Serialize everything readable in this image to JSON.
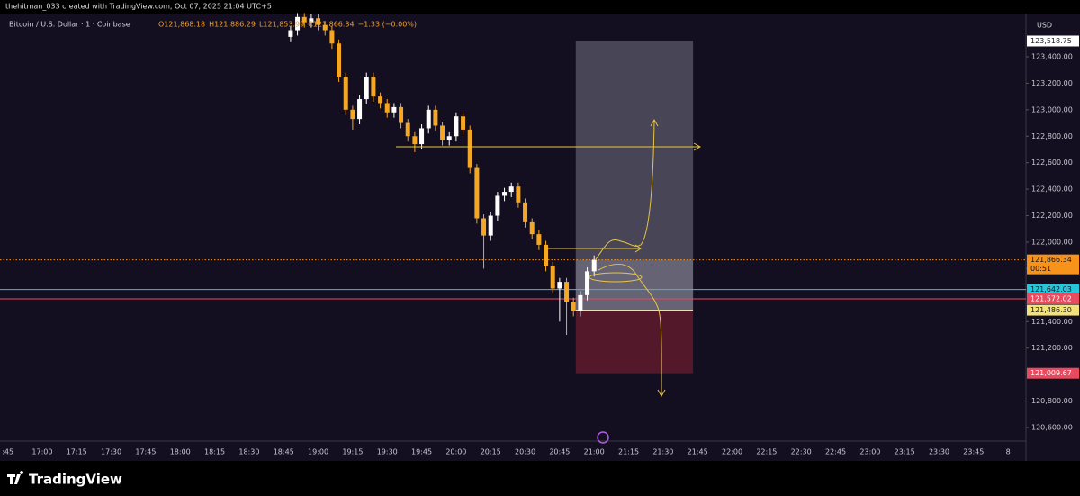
{
  "header": {
    "credit": "thehitman_033 created with TradingView.com, Oct 07, 2025 21:04 UTC+5",
    "symbol": "Bitcoin / U.S. Dollar · 1 · Coinbase",
    "ohlc": [
      "O121,868.18",
      "H121,886.29",
      "L121,853.99",
      "C121,866.34",
      "−1.33 (−0.00%)"
    ],
    "currency": "USD",
    "brand": "TradingView"
  },
  "chart_data": {
    "type": "candlestick",
    "up_color": "#ffffff",
    "down_color": "#f5a623",
    "x": [
      "18:48",
      "18:51",
      "18:54",
      "18:57",
      "19:00",
      "19:03",
      "19:06",
      "19:09",
      "19:12",
      "19:15",
      "19:18",
      "19:21",
      "19:24",
      "19:27",
      "19:30",
      "19:33",
      "19:36",
      "19:39",
      "19:42",
      "19:45",
      "19:48",
      "19:51",
      "19:54",
      "19:57",
      "20:00",
      "20:03",
      "20:06",
      "20:09",
      "20:12",
      "20:15",
      "20:18",
      "20:21",
      "20:24",
      "20:27",
      "20:30",
      "20:33",
      "20:36",
      "20:39",
      "20:42",
      "20:45",
      "20:48",
      "20:51",
      "20:54",
      "20:57",
      "21:00"
    ],
    "open": [
      123550,
      123600,
      123700,
      123660,
      123690,
      123640,
      123600,
      123500,
      123250,
      123000,
      122930,
      123080,
      123250,
      123100,
      123050,
      122980,
      123020,
      122900,
      122800,
      122740,
      122860,
      123000,
      122880,
      122770,
      122800,
      122950,
      122850,
      122560,
      122180,
      122050,
      122200,
      122350,
      122380,
      122420,
      122300,
      122150,
      122060,
      121980,
      121820,
      121650,
      121700,
      121550,
      121480,
      121600,
      121780
    ],
    "high": [
      123630,
      123730,
      123730,
      123720,
      123720,
      123670,
      123630,
      123530,
      123280,
      123030,
      123110,
      123280,
      123280,
      123130,
      123080,
      123050,
      123050,
      122930,
      122830,
      122890,
      123030,
      123030,
      122910,
      122830,
      122980,
      122980,
      122880,
      122590,
      122210,
      122230,
      122380,
      122410,
      122450,
      122450,
      122330,
      122180,
      122090,
      122010,
      121850,
      121730,
      121730,
      121580,
      121630,
      121810,
      121900
    ],
    "low": [
      123510,
      123560,
      123620,
      123620,
      123600,
      123560,
      123460,
      123210,
      122960,
      122850,
      122890,
      123040,
      123060,
      123010,
      122940,
      122940,
      122860,
      122760,
      122680,
      122700,
      122820,
      122840,
      122730,
      122730,
      122760,
      122810,
      122520,
      122140,
      121800,
      122010,
      122160,
      122310,
      122340,
      122260,
      122110,
      122020,
      121940,
      121780,
      121610,
      121400,
      121300,
      121440,
      121440,
      121560,
      121740
    ],
    "close": [
      123600,
      123700,
      123660,
      123690,
      123640,
      123600,
      123500,
      123250,
      123000,
      122930,
      123080,
      123250,
      123100,
      123050,
      122980,
      123020,
      122900,
      122800,
      122740,
      122860,
      123000,
      122880,
      122770,
      122800,
      122950,
      122850,
      122560,
      122180,
      122050,
      122200,
      122350,
      122380,
      122420,
      122300,
      122150,
      122060,
      121980,
      121820,
      121650,
      121700,
      121550,
      121480,
      121600,
      121780,
      121866.34
    ],
    "ylim": [
      120498,
      123726
    ],
    "yticks": [
      {
        "value": 123400,
        "label": "123,400.00"
      },
      {
        "value": 123200,
        "label": "123,200.00"
      },
      {
        "value": 123000,
        "label": "123,000.00"
      },
      {
        "value": 122800,
        "label": "122,800.00"
      },
      {
        "value": 122600,
        "label": "122,600.00"
      },
      {
        "value": 122400,
        "label": "122,400.00"
      },
      {
        "value": 122200,
        "label": "122,200.00"
      },
      {
        "value": 122000,
        "label": "122,000.00"
      },
      {
        "value": 121800,
        "label": "121,800.00"
      },
      {
        "value": 121400,
        "label": "121,400.00"
      },
      {
        "value": 121200,
        "label": "121,200.00"
      },
      {
        "value": 120800,
        "label": "120,800.00"
      },
      {
        "value": 120600,
        "label": "120,600.00"
      }
    ],
    "xticks": [
      ":45",
      "17:00",
      "17:15",
      "17:30",
      "17:45",
      "18:00",
      "18:15",
      "18:30",
      "18:45",
      "19:00",
      "19:15",
      "19:30",
      "19:45",
      "20:00",
      "20:15",
      "20:30",
      "20:45",
      "21:00",
      "21:15",
      "21:30",
      "21:45",
      "22:00",
      "22:15",
      "22:30",
      "22:45",
      "23:00",
      "23:15",
      "23:30",
      "23:45",
      "8"
    ],
    "hlines": [
      {
        "value": 121866.34,
        "label": "121,866.34",
        "sub": "00:51",
        "color": "#f7931a",
        "style": "dotted"
      },
      {
        "value": 121642.03,
        "label": "121,642.03",
        "color": "#26c6da",
        "style": "solid"
      },
      {
        "value": 121572.02,
        "label": "121,572.02",
        "color": "#e84a5f",
        "style": "solid"
      }
    ],
    "position": {
      "start": "20:52",
      "end": "21:43",
      "target": {
        "value": 123518.75,
        "label": "123,518.75"
      },
      "entry": {
        "value": 121486.3,
        "label": "121,486.30"
      },
      "stop": {
        "value": 121009.67,
        "label": "121,009.67"
      }
    }
  }
}
